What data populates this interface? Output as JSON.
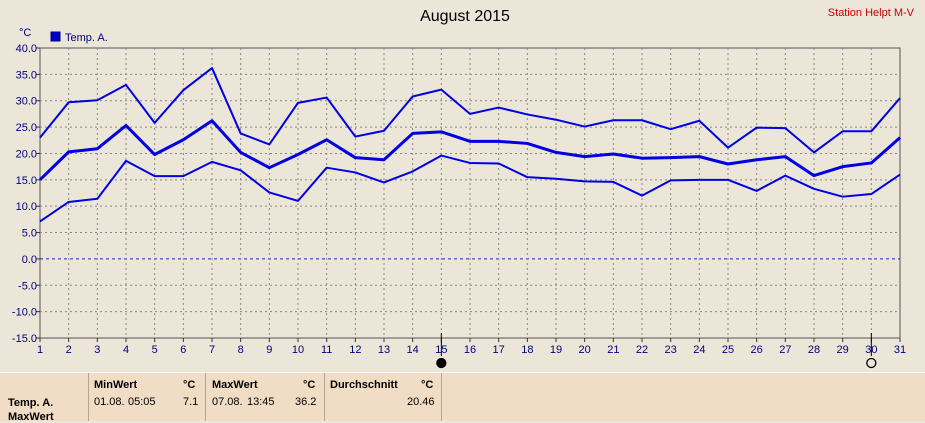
{
  "chart_data": {
    "type": "line",
    "title": "August 2015",
    "station": "Station Helpt M-V",
    "y_unit": "°C",
    "legend": "Temp. A.",
    "ylim": [
      -15,
      40
    ],
    "yticks": [
      "40.0",
      "35.0",
      "30.0",
      "25.0",
      "20.0",
      "15.0",
      "10.0",
      "5.0",
      "0.0",
      "-5.0",
      "-10.0",
      "-15.0"
    ],
    "x": [
      1,
      2,
      3,
      4,
      5,
      6,
      7,
      8,
      9,
      10,
      11,
      12,
      13,
      14,
      15,
      16,
      17,
      18,
      19,
      20,
      21,
      22,
      23,
      24,
      25,
      26,
      27,
      28,
      29,
      30,
      31
    ],
    "xticks": [
      "1",
      "2",
      "3",
      "4",
      "5",
      "6",
      "7",
      "8",
      "9",
      "10",
      "11",
      "12",
      "13",
      "14",
      "15",
      "16",
      "17",
      "18",
      "19",
      "20",
      "21",
      "22",
      "23",
      "24",
      "25",
      "26",
      "27",
      "28",
      "29",
      "30",
      "31"
    ],
    "grid": true,
    "series": [
      {
        "role": "max",
        "values": [
          23.0,
          29.7,
          30.1,
          33.0,
          25.8,
          32.0,
          36.2,
          23.8,
          21.7,
          29.6,
          30.6,
          23.2,
          24.3,
          30.8,
          32.1,
          27.5,
          28.7,
          27.4,
          26.4,
          25.1,
          26.3,
          26.3,
          24.6,
          26.2,
          21.1,
          24.9,
          24.8,
          20.2,
          24.2,
          24.2,
          30.5
        ]
      },
      {
        "role": "avg",
        "values": [
          15.0,
          20.3,
          20.9,
          25.3,
          19.8,
          22.6,
          26.2,
          20.2,
          17.3,
          19.8,
          22.6,
          19.2,
          18.8,
          23.8,
          24.1,
          22.3,
          22.3,
          21.9,
          20.2,
          19.4,
          19.9,
          19.1,
          19.2,
          19.4,
          18.0,
          18.8,
          19.4,
          15.8,
          17.5,
          18.2,
          23.0
        ]
      },
      {
        "role": "min",
        "values": [
          7.1,
          10.8,
          11.4,
          18.6,
          15.7,
          15.7,
          18.4,
          16.8,
          12.6,
          11.0,
          17.3,
          16.4,
          14.5,
          16.6,
          19.6,
          18.2,
          18.1,
          15.5,
          15.2,
          14.7,
          14.6,
          12.0,
          14.9,
          15.0,
          15.0,
          12.9,
          15.8,
          13.3,
          11.8,
          12.3,
          16.0
        ]
      }
    ],
    "markers": [
      {
        "type": "filled-circle",
        "x": 15
      },
      {
        "type": "open-circle",
        "x": 30
      }
    ]
  },
  "stats": {
    "label": "Temp. A.",
    "label2": "MaxWert",
    "min": {
      "heading": "MinWert",
      "unit": "°C",
      "date": "01.08.",
      "time": "05:05",
      "value": "7.1"
    },
    "max": {
      "heading": "MaxWert",
      "unit": "°C",
      "date": "07.08.",
      "time": "13:45",
      "value": "36.2"
    },
    "avg": {
      "heading": "Durchschnitt",
      "unit": "°C",
      "value": "20.46"
    }
  }
}
